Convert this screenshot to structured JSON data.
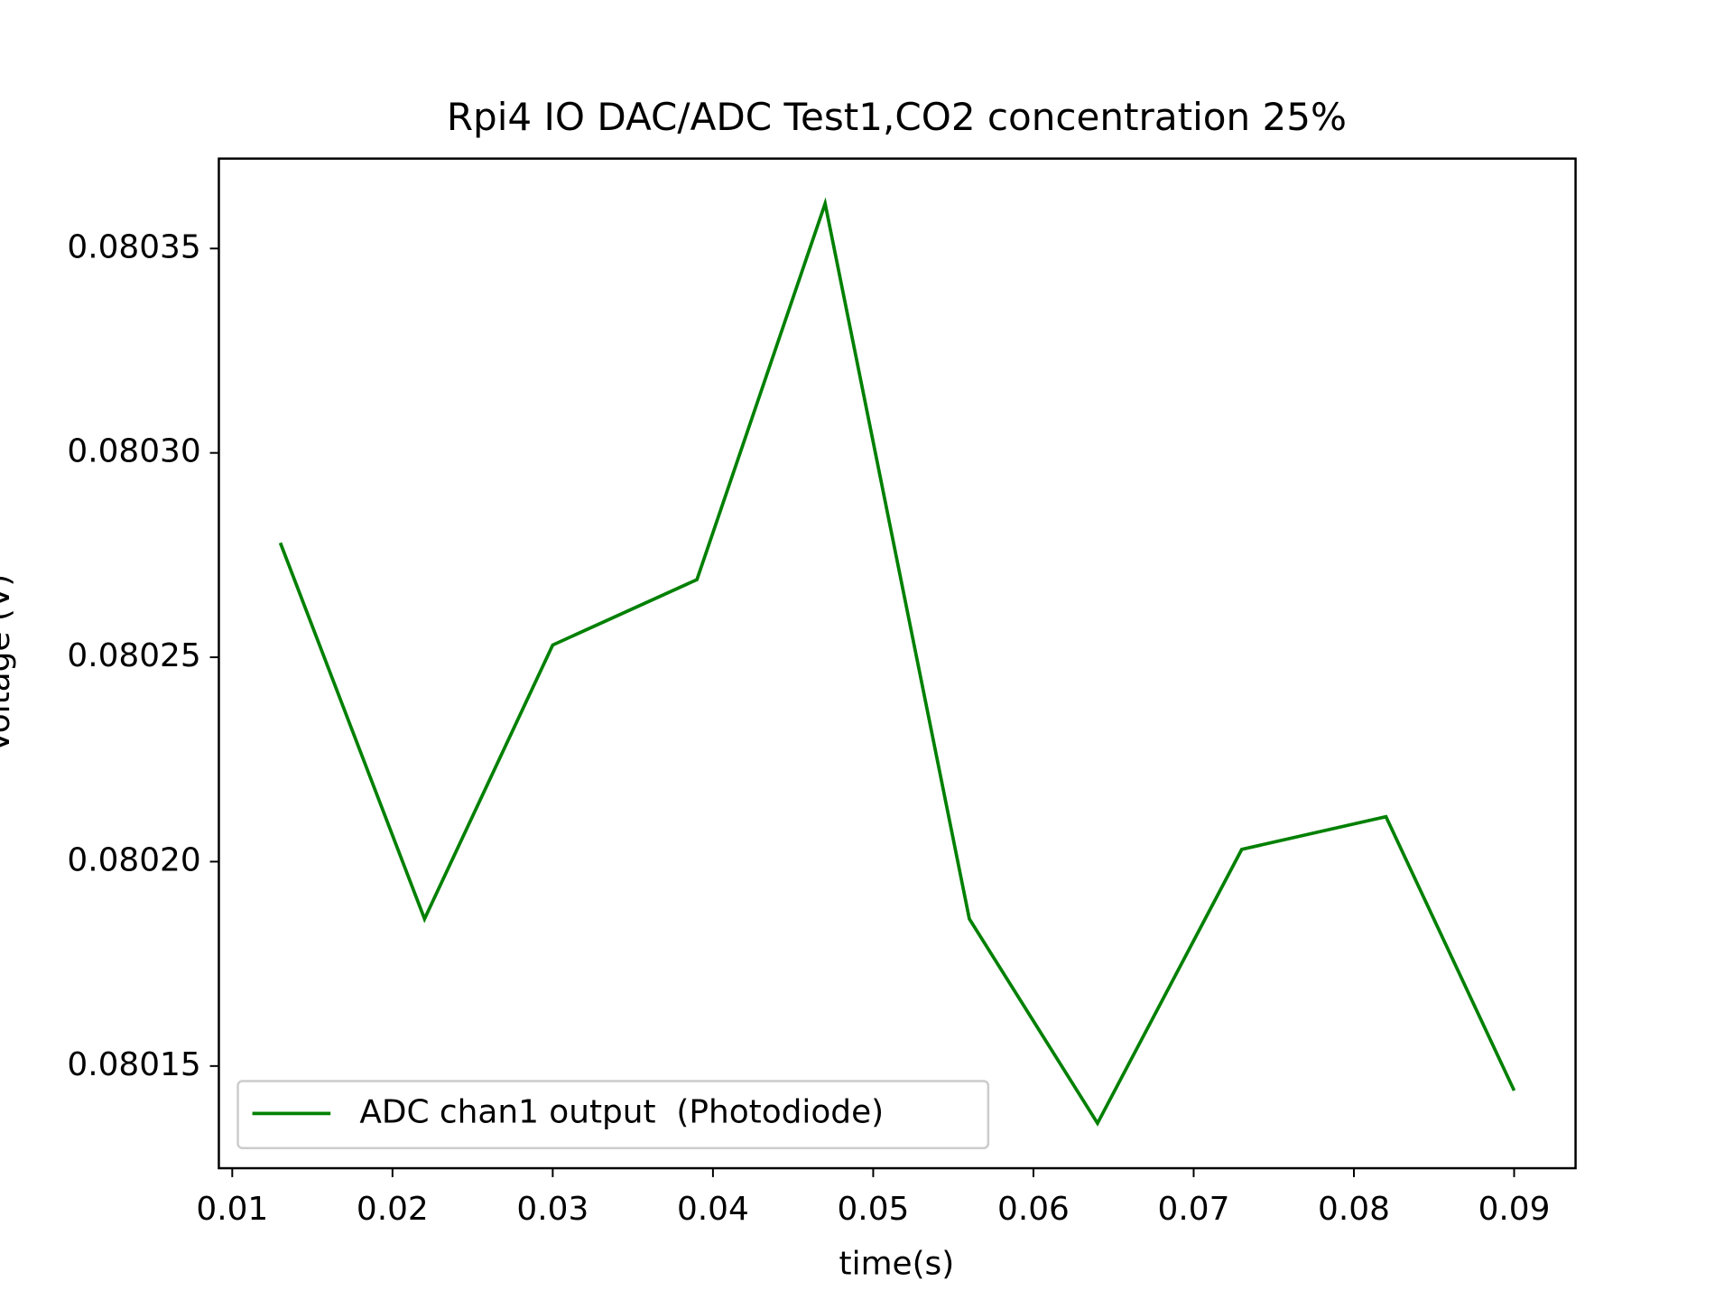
{
  "chart_data": {
    "type": "line",
    "title": "Rpi4 IO DAC/ADC Test1,CO2 concentration 25%",
    "xlabel": "time(s)",
    "ylabel": "Voltage (V)",
    "x": [
      0.013,
      0.022,
      0.03,
      0.039,
      0.047,
      0.056,
      0.064,
      0.073,
      0.082,
      0.09
    ],
    "series": [
      {
        "name": "ADC chan1 output  (Photodiode)",
        "color": "#008000",
        "values": [
          0.080278,
          0.080186,
          0.080253,
          0.080269,
          0.080361,
          0.080186,
          0.080136,
          0.080203,
          0.080211,
          0.080144
        ]
      }
    ],
    "xlim": [
      0.009164,
      0.093833
    ],
    "ylim": [
      0.080125,
      0.080372
    ],
    "xticks": [
      0.01,
      0.02,
      0.03,
      0.04,
      0.05,
      0.06,
      0.07,
      0.08,
      0.09
    ],
    "yticks": [
      0.08015,
      {
        "value": 0.0802,
        "label": "0.08020"
      },
      0.08025,
      {
        "value": 0.0803,
        "label": "0.08030"
      },
      0.08035
    ],
    "grid": false,
    "legend": "lower left"
  }
}
